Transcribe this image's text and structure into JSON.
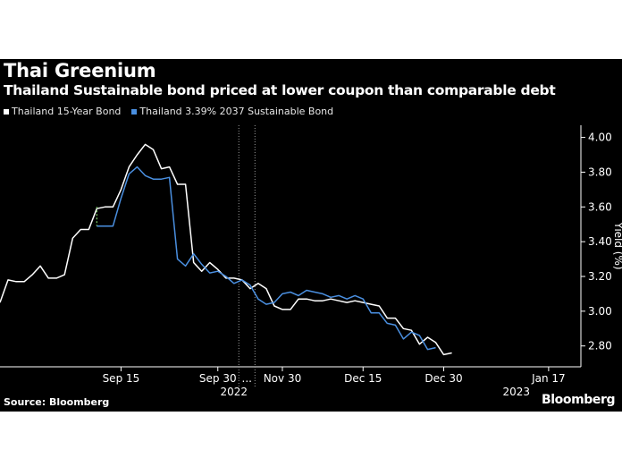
{
  "header": {
    "title": "Thai Greenium",
    "subtitle": "Thailand Sustainable bond priced at lower coupon than comparable debt"
  },
  "footer": {
    "source": "Source: Bloomberg",
    "logo": "Bloomberg"
  },
  "chart_data": {
    "type": "line",
    "title": "Thai Greenium",
    "subtitle": "Thailand Sustainable bond priced at lower coupon than comparable debt",
    "ylabel": "Yield (%)",
    "xlabel": "",
    "ylim": [
      2.68,
      4.07
    ],
    "y_ticks": [
      "4.00",
      "3.80",
      "3.60",
      "3.40",
      "3.20",
      "3.00",
      "2.80"
    ],
    "x_ticks": [
      {
        "label": "Sep 15",
        "index": 15
      },
      {
        "label": "Sep 30",
        "index": 27
      },
      {
        "label": "...",
        "index": 30.6
      },
      {
        "label": "Nov 30",
        "index": 35
      },
      {
        "label": "Dec 15",
        "index": 45
      },
      {
        "label": "Dec 30",
        "index": 55
      },
      {
        "label": "Jan 17",
        "index": 68
      }
    ],
    "x_groups": [
      {
        "label": "2022",
        "index": 29
      },
      {
        "label": "2023",
        "index": 64
      }
    ],
    "axis_breaks": [
      29.6,
      31.6
    ],
    "grid": false,
    "legend_position": "top-left",
    "series": [
      {
        "name": "Thailand 15-Year Bond",
        "color": "#ffffff",
        "start_index": 0,
        "values": [
          3.05,
          3.18,
          3.17,
          3.17,
          3.21,
          3.26,
          3.19,
          3.19,
          3.21,
          3.42,
          3.47,
          3.47,
          3.59,
          3.6,
          3.6,
          3.7,
          3.83,
          3.9,
          3.96,
          3.93,
          3.82,
          3.83,
          3.73,
          3.73,
          3.28,
          3.23,
          3.28,
          3.24,
          3.19,
          3.19,
          3.18,
          3.13,
          3.16,
          3.13,
          3.03,
          3.01,
          3.01,
          3.07,
          3.07,
          3.06,
          3.06,
          3.07,
          3.06,
          3.05,
          3.06,
          3.05,
          3.04,
          3.03,
          2.96,
          2.96,
          2.9,
          2.89,
          2.81,
          2.85,
          2.82,
          2.75,
          2.76
        ]
      },
      {
        "name": "Thailand 3.39% 2037 Sustainable Bond",
        "color": "#4a8fe0",
        "start_index": 12,
        "values": [
          3.49,
          3.49,
          3.49,
          3.65,
          3.79,
          3.83,
          3.78,
          3.76,
          3.76,
          3.77,
          3.3,
          3.26,
          3.33,
          3.27,
          3.22,
          3.23,
          3.2,
          3.16,
          3.18,
          3.15,
          3.07,
          3.04,
          3.05,
          3.1,
          3.11,
          3.09,
          3.12,
          3.11,
          3.1,
          3.08,
          3.09,
          3.07,
          3.09,
          3.07,
          2.99,
          2.99,
          2.93,
          2.92,
          2.84,
          2.88,
          2.86,
          2.78,
          2.79
        ]
      }
    ]
  }
}
